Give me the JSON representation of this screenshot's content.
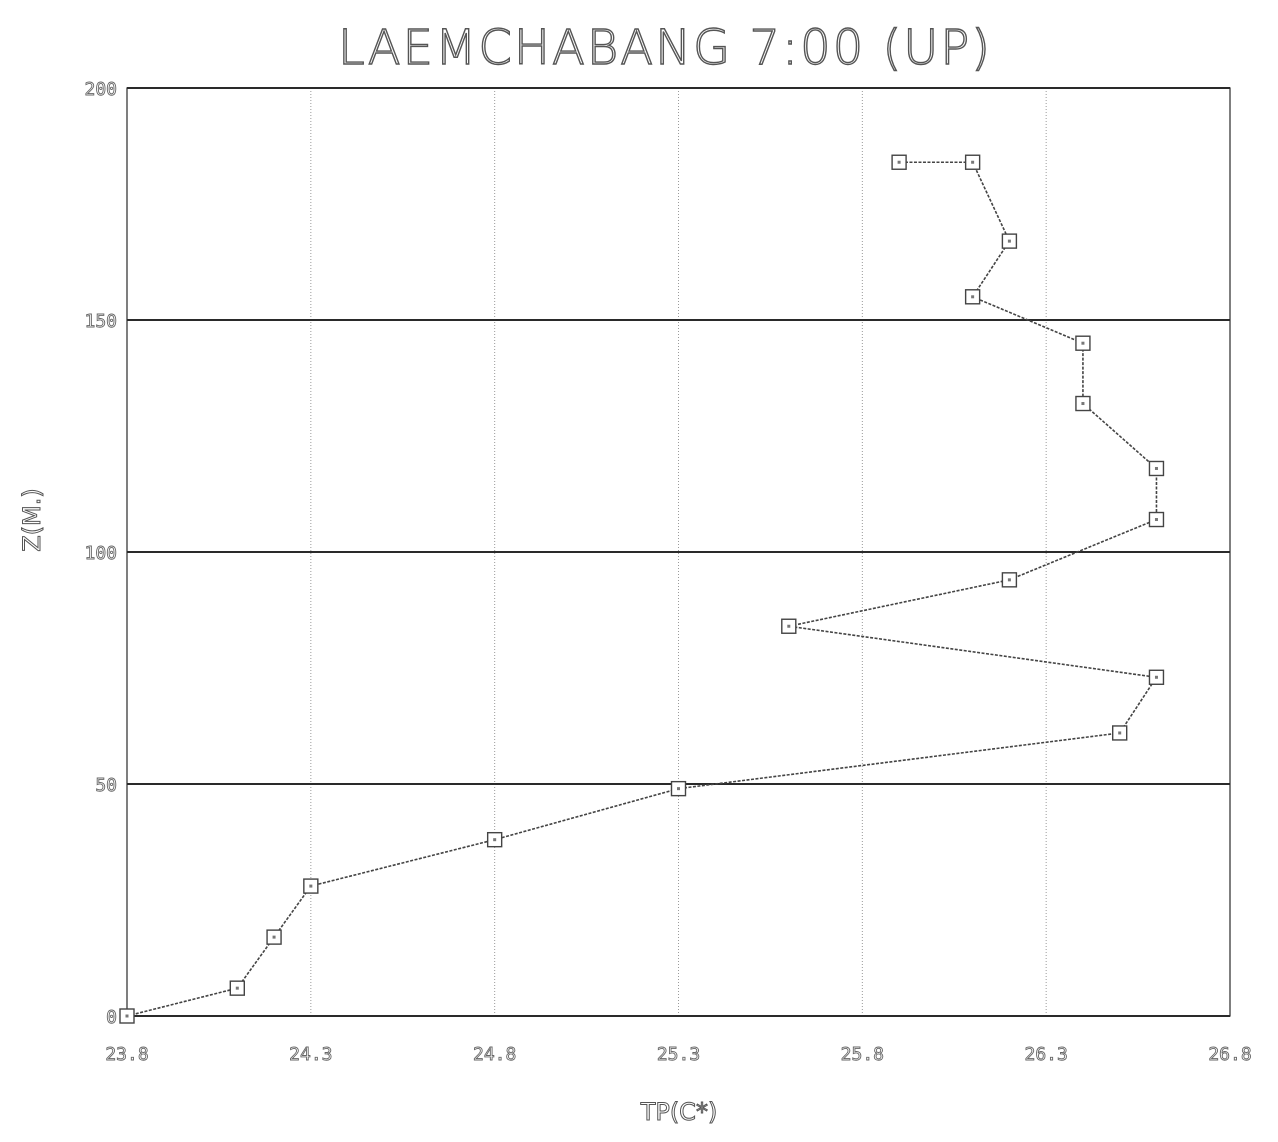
{
  "chart_data": {
    "type": "line",
    "title": "LAEMCHABANG 7:00 (UP)",
    "xlabel": "TP(C*)",
    "ylabel": "Z(M.)",
    "xlim": [
      23.8,
      26.8
    ],
    "ylim": [
      0,
      200
    ],
    "x_ticks": [
      "23.8",
      "24.3",
      "24.8",
      "25.3",
      "25.8",
      "26.3",
      "26.8"
    ],
    "y_ticks": [
      "0",
      "50",
      "100",
      "150",
      "200"
    ],
    "grid": true,
    "series": [
      {
        "marker": "square",
        "points": [
          {
            "x": 23.8,
            "y": 0
          },
          {
            "x": 24.1,
            "y": 6
          },
          {
            "x": 24.2,
            "y": 17
          },
          {
            "x": 24.3,
            "y": 28
          },
          {
            "x": 24.8,
            "y": 38
          },
          {
            "x": 25.3,
            "y": 49
          },
          {
            "x": 26.5,
            "y": 61
          },
          {
            "x": 26.6,
            "y": 73
          },
          {
            "x": 25.6,
            "y": 84
          },
          {
            "x": 26.2,
            "y": 94
          },
          {
            "x": 26.6,
            "y": 107
          },
          {
            "x": 26.6,
            "y": 118
          },
          {
            "x": 26.4,
            "y": 132
          },
          {
            "x": 26.4,
            "y": 145
          },
          {
            "x": 26.1,
            "y": 155
          },
          {
            "x": 26.2,
            "y": 167
          },
          {
            "x": 26.1,
            "y": 184
          },
          {
            "x": 25.9,
            "y": 184
          }
        ]
      }
    ]
  }
}
